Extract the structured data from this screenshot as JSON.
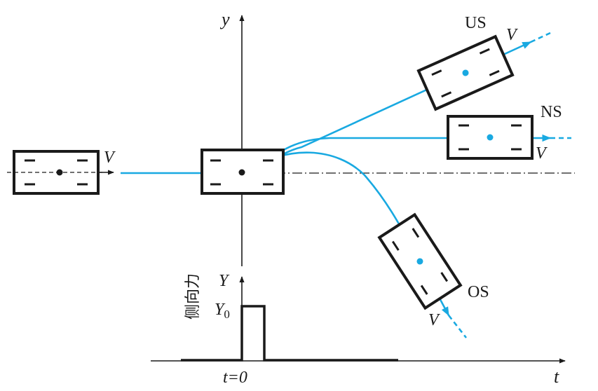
{
  "labels": {
    "y_axis": "y",
    "t_axis": "t",
    "force_axis": "Y",
    "force_peak": "Y",
    "force_peak_sub": "0",
    "force_title": "侧向力",
    "t_zero": "t=0",
    "velocity": "V",
    "us": "US",
    "ns": "NS",
    "os": "OS"
  },
  "colors": {
    "trajectory": "#19a9e1",
    "outline": "#1a1a1a"
  }
}
